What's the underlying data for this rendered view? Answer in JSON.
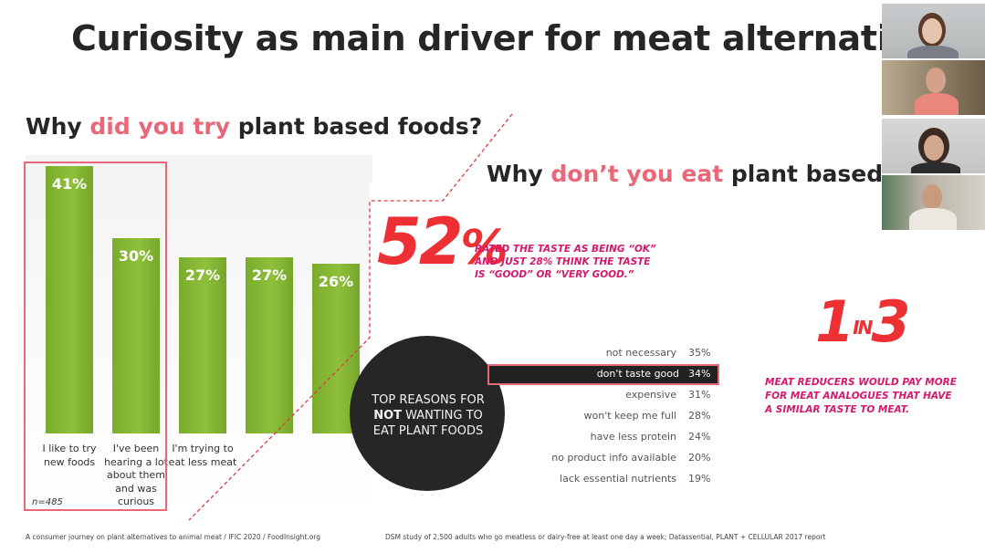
{
  "slide": {
    "title": "Curiosity as main driver for meat alternatives",
    "q1": {
      "pre": "Why ",
      "highlight": "did you try",
      "post": " plant based foods?"
    },
    "q2": {
      "pre": "Why ",
      "highlight": "don’t you eat",
      "post": " plant based"
    },
    "n_label": "n=485",
    "footnote_left": "A consumer journey on plant alternatives to animal meat / IFIC 2020 / FoodInsight.org",
    "footnote_right": "DSM study of 2,500 adults who go meatless or dairy-free at least one day a week; Datassential, PLANT + CELLULAR 2017 report"
  },
  "chart_data": {
    "type": "bar",
    "categories": [
      "I like to try new foods",
      "I've been hearing a lot about them and was curious",
      "I'm trying to eat less meat",
      "",
      ""
    ],
    "values": [
      41,
      30,
      27,
      27,
      26
    ],
    "value_labels": [
      "41%",
      "30%",
      "27%",
      "27%",
      "26%"
    ],
    "ylim": [
      0,
      45
    ],
    "highlight_color": "#e8687a",
    "bar_color": "#86b834"
  },
  "stats": {
    "big_number": "52",
    "big_pct": "%",
    "taste_lines": [
      "RATED THE TASTE AS BEING “OK”",
      "AND JUST 28% THINK THE TASTE",
      "IS “GOOD” OR “VERY GOOD.”"
    ],
    "one_in_three": {
      "a": "1",
      "sup": "IN",
      "b": "3"
    },
    "reducers_lines": [
      "MEAT REDUCERS WOULD PAY MORE",
      "FOR MEAT ANALOGUES THAT HAVE",
      "A SIMILAR TASTE TO MEAT."
    ],
    "accent_red": "#ed3034",
    "accent_magenta": "#d4186b"
  },
  "reasons": {
    "circle_lines": [
      "TOP REASONS FOR",
      "NOT",
      " WANTING TO",
      "EAT PLANT FOODS"
    ],
    "items": [
      {
        "label": "not necessary",
        "pct": "35%"
      },
      {
        "label": "don't taste good",
        "pct": "34%"
      },
      {
        "label": "expensive",
        "pct": "31%"
      },
      {
        "label": "won't keep me full",
        "pct": "28%"
      },
      {
        "label": "have less protein",
        "pct": "24%"
      },
      {
        "label": "no product info available",
        "pct": "20%"
      },
      {
        "label": "lack essential nutrients",
        "pct": "19%"
      }
    ]
  },
  "video_tiles": [
    "participant-1",
    "participant-2",
    "participant-3",
    "participant-4"
  ]
}
